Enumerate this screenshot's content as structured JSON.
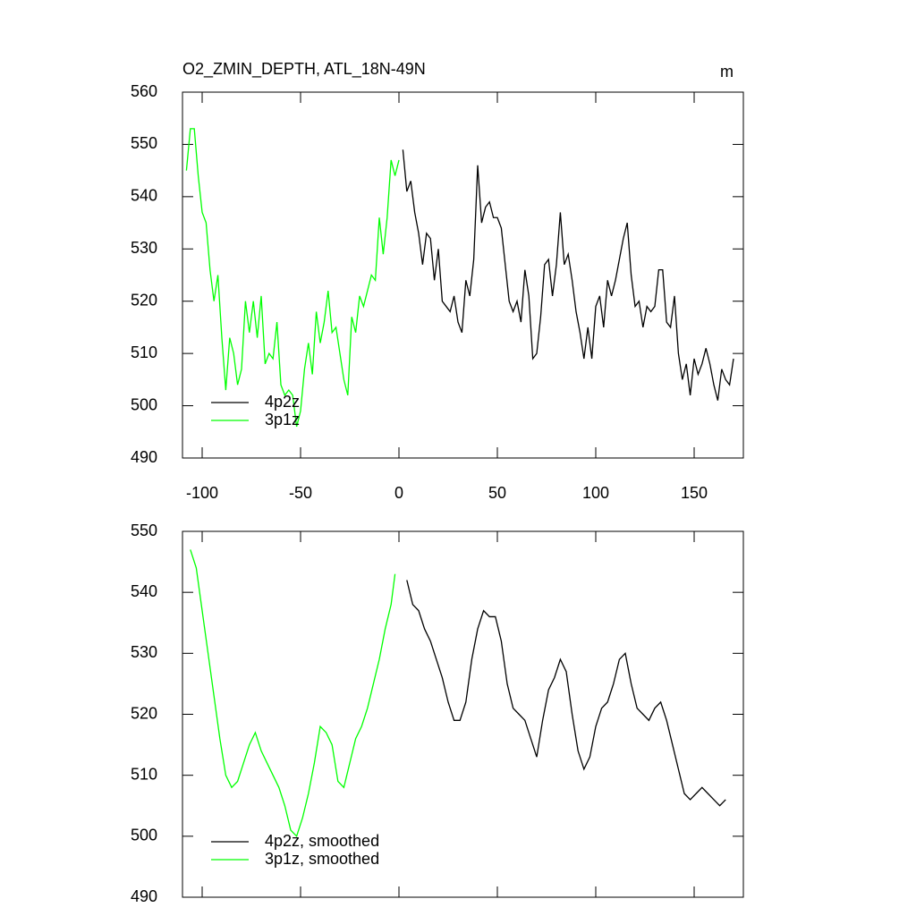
{
  "chart_data": [
    {
      "type": "line",
      "title": "O2_ZMIN_DEPTH, ATL_18N-49N",
      "units": "m",
      "xlim": [
        -110,
        175
      ],
      "ylim": [
        490,
        560
      ],
      "xticks": [
        -100,
        -50,
        0,
        50,
        100,
        150
      ],
      "yticks": [
        490,
        500,
        510,
        520,
        530,
        540,
        550,
        560
      ],
      "legend": "lower left",
      "series": [
        {
          "name": "4p2z",
          "color": "#000000",
          "x": [
            2,
            4,
            6,
            8,
            10,
            12,
            14,
            16,
            18,
            20,
            22,
            24,
            26,
            28,
            30,
            32,
            34,
            36,
            38,
            40,
            42,
            44,
            46,
            48,
            50,
            52,
            54,
            56,
            58,
            60,
            62,
            64,
            66,
            68,
            70,
            72,
            74,
            76,
            78,
            80,
            82,
            84,
            86,
            88,
            90,
            92,
            94,
            96,
            98,
            100,
            102,
            104,
            106,
            108,
            110,
            112,
            114,
            116,
            118,
            120,
            122,
            124,
            126,
            128,
            130,
            132,
            134,
            136,
            138,
            140,
            142,
            144,
            146,
            148,
            150,
            152,
            154,
            156,
            158,
            160,
            162,
            164,
            166,
            168,
            170
          ],
          "values": [
            549,
            541,
            543,
            537,
            533,
            527,
            533,
            532,
            524,
            530,
            520,
            519,
            518,
            521,
            516,
            514,
            524,
            521,
            528,
            546,
            535,
            538,
            539,
            536,
            536,
            534,
            527,
            520,
            518,
            520,
            516,
            526,
            521,
            509,
            510,
            517,
            527,
            528,
            521,
            527,
            537,
            527,
            529,
            524,
            518,
            514,
            509,
            515,
            509,
            519,
            521,
            515,
            524,
            521,
            524,
            528,
            532,
            535,
            525,
            519,
            520,
            515,
            519,
            518,
            519,
            526,
            526,
            516,
            515,
            521,
            510,
            505,
            508,
            502,
            509,
            506,
            508,
            511,
            508,
            504,
            501,
            507,
            505,
            504,
            509
          ]
        },
        {
          "name": "3p1z",
          "color": "#00ff00",
          "x": [
            -108,
            -106,
            -104,
            -102,
            -100,
            -98,
            -96,
            -94,
            -92,
            -90,
            -88,
            -86,
            -84,
            -82,
            -80,
            -78,
            -76,
            -74,
            -72,
            -70,
            -68,
            -66,
            -64,
            -62,
            -60,
            -58,
            -56,
            -54,
            -52,
            -50,
            -48,
            -46,
            -44,
            -42,
            -40,
            -38,
            -36,
            -34,
            -32,
            -30,
            -28,
            -26,
            -24,
            -22,
            -20,
            -18,
            -16,
            -14,
            -12,
            -10,
            -8,
            -6,
            -4,
            -2,
            0
          ],
          "values": [
            545,
            553,
            553,
            544,
            537,
            535,
            526,
            520,
            525,
            513,
            503,
            513,
            510,
            504,
            507,
            520,
            514,
            520,
            513,
            521,
            508,
            510,
            509,
            516,
            504,
            502,
            503,
            502,
            496,
            499,
            507,
            512,
            506,
            518,
            512,
            516,
            522,
            514,
            515,
            510,
            505,
            502,
            517,
            514,
            521,
            519,
            522,
            525,
            524,
            536,
            529,
            536,
            547,
            544,
            547
          ]
        }
      ]
    },
    {
      "type": "line",
      "xlim": [
        -110,
        175
      ],
      "ylim": [
        490,
        550
      ],
      "xticks": [
        -100,
        -50,
        0,
        50,
        100,
        150
      ],
      "yticks": [
        490,
        500,
        510,
        520,
        530,
        540,
        550
      ],
      "legend": "lower left",
      "series": [
        {
          "name": "4p2z, smoothed",
          "color": "#000000",
          "x": [
            4,
            7,
            10,
            13,
            16,
            19,
            22,
            25,
            28,
            31,
            34,
            37,
            40,
            43,
            46,
            49,
            52,
            55,
            58,
            61,
            64,
            67,
            70,
            73,
            76,
            79,
            82,
            85,
            88,
            91,
            94,
            97,
            100,
            103,
            106,
            109,
            112,
            115,
            118,
            121,
            124,
            127,
            130,
            133,
            136,
            139,
            142,
            145,
            148,
            151,
            154,
            157,
            160,
            163,
            166
          ],
          "values": [
            542,
            538,
            537,
            534,
            532,
            529,
            526,
            522,
            519,
            519,
            522,
            529,
            534,
            537,
            536,
            536,
            532,
            525,
            521,
            520,
            519,
            516,
            513,
            519,
            524,
            526,
            529,
            527,
            520,
            514,
            511,
            513,
            518,
            521,
            522,
            525,
            529,
            530,
            525,
            521,
            520,
            519,
            521,
            522,
            519,
            515,
            511,
            507,
            506,
            507,
            508,
            507,
            506,
            505,
            506
          ]
        },
        {
          "name": "3p1z, smoothed",
          "color": "#00ff00",
          "x": [
            -106,
            -103,
            -100,
            -97,
            -94,
            -91,
            -88,
            -85,
            -82,
            -79,
            -76,
            -73,
            -70,
            -67,
            -64,
            -61,
            -58,
            -55,
            -52,
            -49,
            -46,
            -43,
            -40,
            -37,
            -34,
            -31,
            -28,
            -25,
            -22,
            -19,
            -16,
            -13,
            -10,
            -7,
            -4,
            -2
          ],
          "values": [
            547,
            544,
            537,
            530,
            523,
            516,
            510,
            508,
            509,
            512,
            515,
            517,
            514,
            512,
            510,
            508,
            505,
            501,
            500,
            503,
            507,
            512,
            518,
            517,
            515,
            509,
            508,
            512,
            516,
            518,
            521,
            525,
            529,
            534,
            538,
            543
          ]
        }
      ]
    }
  ]
}
